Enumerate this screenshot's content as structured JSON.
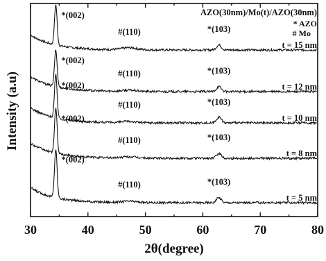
{
  "chart_data": {
    "type": "line",
    "title": "",
    "xlabel": "2θ(degree)",
    "ylabel": "Intensity (a.u)",
    "xlim": [
      30,
      80
    ],
    "x_ticks": [
      "30",
      "40",
      "50",
      "60",
      "70",
      "80"
    ],
    "y_tick_labels": "none",
    "grid": false,
    "legend": {
      "position": "top-right",
      "lines": [
        "AZO(30nm)/Mo(t)/AZO(30nm)",
        "* AZO",
        "# Mo"
      ]
    },
    "series": [
      {
        "name": "t = 15 nm",
        "peaks": [
          {
            "label": "*(002)",
            "x": 34.4,
            "height": 0.98
          },
          {
            "label": "#(110)",
            "x": 47.2,
            "height": 0.05
          },
          {
            "label": "*(103)",
            "x": 62.8,
            "height": 0.12
          }
        ]
      },
      {
        "name": "t = 12 nm",
        "peaks": [
          {
            "label": "*(002)",
            "x": 34.4,
            "height": 0.8
          },
          {
            "label": "#(110)",
            "x": 47.2,
            "height": 0.03
          },
          {
            "label": "*(103)",
            "x": 62.8,
            "height": 0.12
          }
        ]
      },
      {
        "name": "t = 10 nm",
        "peaks": [
          {
            "label": "*(002)",
            "x": 34.4,
            "height": 0.95
          },
          {
            "label": "#(110)",
            "x": 47.2,
            "height": 0.03
          },
          {
            "label": "*(103)",
            "x": 62.8,
            "height": 0.14
          }
        ]
      },
      {
        "name": "t = 8 nm",
        "peaks": [
          {
            "label": "*(002)",
            "x": 34.4,
            "height": 0.88
          },
          {
            "label": "#(110)",
            "x": 47.2,
            "height": 0.03
          },
          {
            "label": "*(103)",
            "x": 62.8,
            "height": 0.12
          }
        ]
      },
      {
        "name": "t = 5 nm",
        "peaks": [
          {
            "label": "*(002)",
            "x": 34.4,
            "height": 1.0
          },
          {
            "label": "#(110)",
            "x": 47.2,
            "height": 0.03
          },
          {
            "label": "*(103)",
            "x": 62.8,
            "height": 0.12
          }
        ]
      }
    ]
  }
}
